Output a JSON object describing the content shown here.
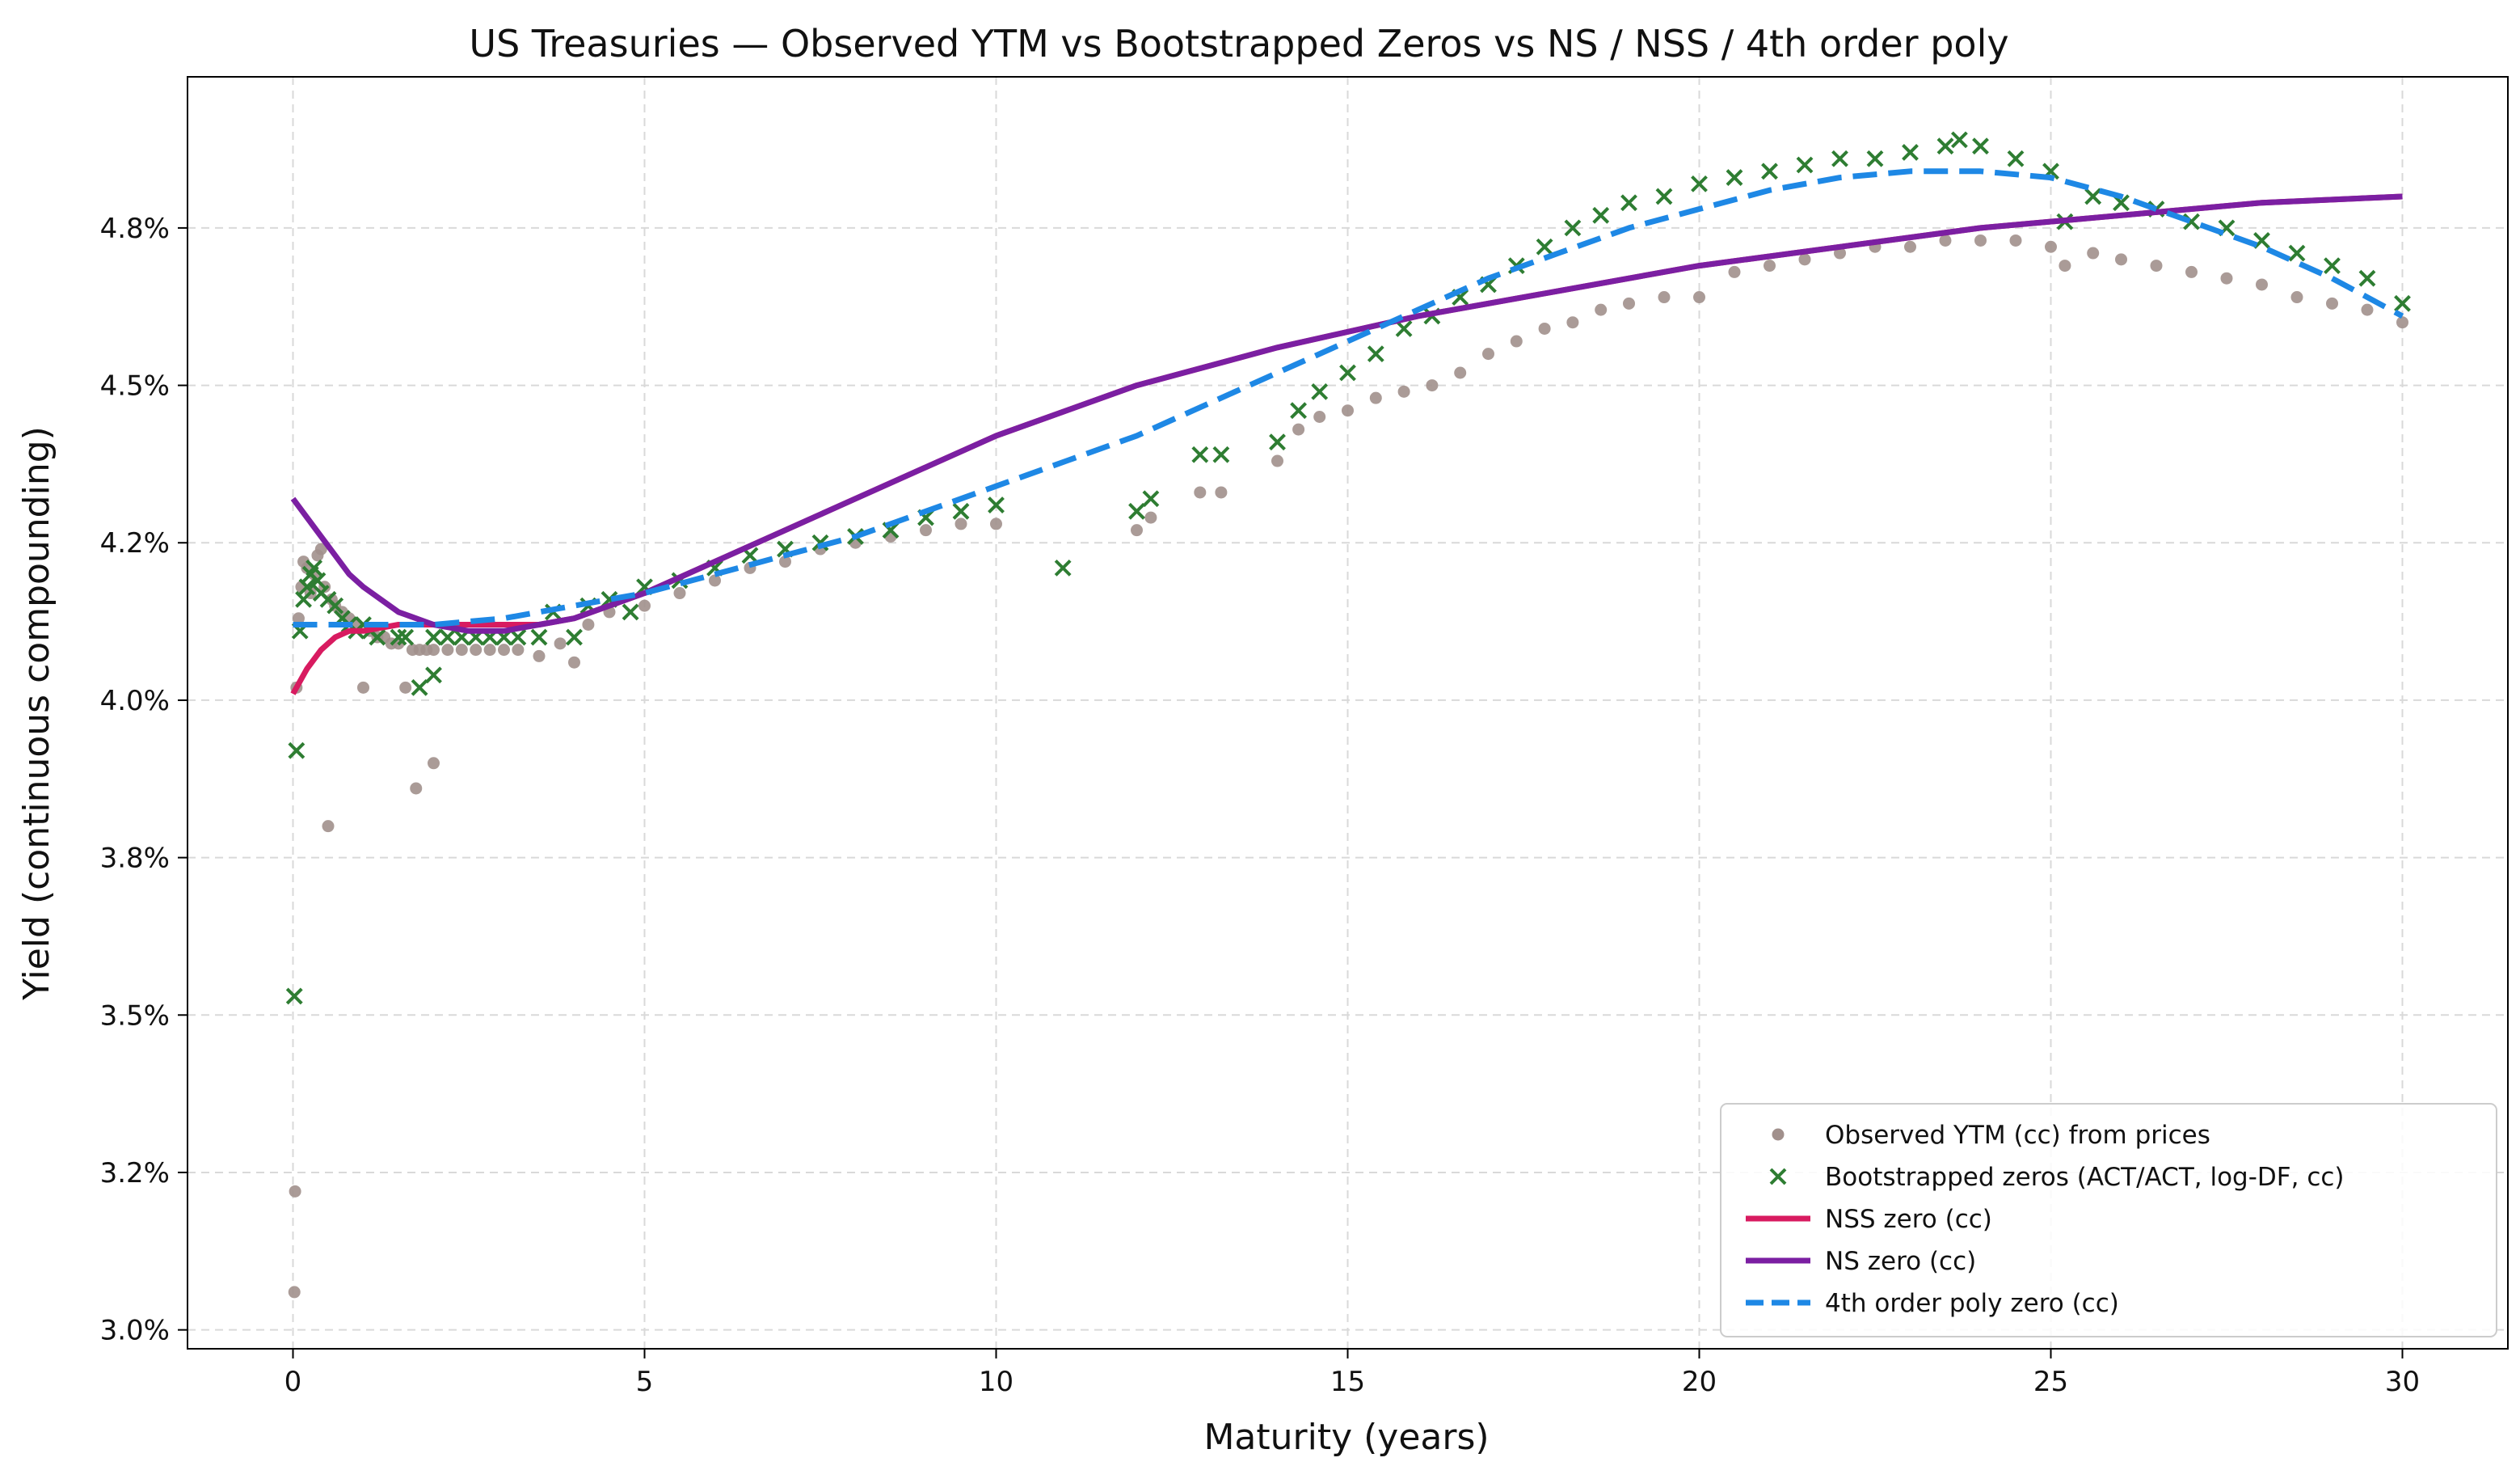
{
  "chart_data": {
    "type": "scatter",
    "title": "US Treasuries — Observed YTM vs Bootstrapped Zeros vs NS / NSS / 4th order poly",
    "xlabel": "Maturity (years)",
    "ylabel": "Yield (continuous compounding)",
    "xlim": [
      -1.5,
      31.5
    ],
    "ylim": [
      2.97,
      4.99
    ],
    "x_ticks": [
      0,
      5,
      10,
      15,
      20,
      25,
      30
    ],
    "x_tick_labels": [
      "0",
      "5",
      "10",
      "15",
      "20",
      "25",
      "30"
    ],
    "y_ticks": [
      3.0,
      3.25,
      3.5,
      3.75,
      4.0,
      4.25,
      4.5,
      4.75
    ],
    "y_tick_labels": [
      "3.0%",
      "3.2%",
      "3.5%",
      "3.8%",
      "4.0%",
      "4.2%",
      "4.5%",
      "4.8%"
    ],
    "grid": true,
    "legend_position": "lower-right",
    "series": [
      {
        "name": "Observed YTM (cc) from prices",
        "kind": "scatter-dot",
        "color": "#a1908c",
        "points": [
          [
            0.02,
            3.06
          ],
          [
            0.03,
            3.22
          ],
          [
            0.05,
            4.02
          ],
          [
            0.08,
            4.13
          ],
          [
            0.12,
            4.18
          ],
          [
            0.15,
            4.22
          ],
          [
            0.2,
            4.21
          ],
          [
            0.25,
            4.17
          ],
          [
            0.3,
            4.2
          ],
          [
            0.35,
            4.23
          ],
          [
            0.4,
            4.24
          ],
          [
            0.45,
            4.18
          ],
          [
            0.5,
            3.8
          ],
          [
            0.55,
            4.16
          ],
          [
            0.6,
            4.15
          ],
          [
            0.7,
            4.14
          ],
          [
            0.8,
            4.13
          ],
          [
            0.9,
            4.12
          ],
          [
            1.0,
            4.02
          ],
          [
            1.1,
            4.11
          ],
          [
            1.2,
            4.1
          ],
          [
            1.3,
            4.1
          ],
          [
            1.4,
            4.09
          ],
          [
            1.5,
            4.09
          ],
          [
            1.6,
            4.02
          ],
          [
            1.7,
            4.08
          ],
          [
            1.75,
            3.86
          ],
          [
            1.8,
            4.08
          ],
          [
            1.9,
            4.08
          ],
          [
            2.0,
            4.08
          ],
          [
            2.0,
            3.9
          ],
          [
            2.2,
            4.08
          ],
          [
            2.4,
            4.08
          ],
          [
            2.6,
            4.08
          ],
          [
            2.8,
            4.08
          ],
          [
            3.0,
            4.08
          ],
          [
            3.2,
            4.08
          ],
          [
            3.5,
            4.07
          ],
          [
            3.8,
            4.09
          ],
          [
            4.0,
            4.06
          ],
          [
            4.2,
            4.12
          ],
          [
            4.5,
            4.14
          ],
          [
            5.0,
            4.15
          ],
          [
            5.5,
            4.17
          ],
          [
            6.0,
            4.19
          ],
          [
            6.5,
            4.21
          ],
          [
            7.0,
            4.22
          ],
          [
            7.5,
            4.24
          ],
          [
            8.0,
            4.25
          ],
          [
            8.5,
            4.26
          ],
          [
            9.0,
            4.27
          ],
          [
            9.5,
            4.28
          ],
          [
            10.0,
            4.28
          ],
          [
            12.0,
            4.27
          ],
          [
            12.2,
            4.29
          ],
          [
            12.9,
            4.33
          ],
          [
            13.2,
            4.33
          ],
          [
            14.0,
            4.38
          ],
          [
            14.3,
            4.43
          ],
          [
            14.6,
            4.45
          ],
          [
            15.0,
            4.46
          ],
          [
            15.4,
            4.48
          ],
          [
            15.8,
            4.49
          ],
          [
            16.2,
            4.5
          ],
          [
            16.6,
            4.52
          ],
          [
            17.0,
            4.55
          ],
          [
            17.4,
            4.57
          ],
          [
            17.8,
            4.59
          ],
          [
            18.2,
            4.6
          ],
          [
            18.6,
            4.62
          ],
          [
            19.0,
            4.63
          ],
          [
            19.5,
            4.64
          ],
          [
            20.0,
            4.64
          ],
          [
            20.5,
            4.68
          ],
          [
            21.0,
            4.69
          ],
          [
            21.5,
            4.7
          ],
          [
            22.0,
            4.71
          ],
          [
            22.5,
            4.72
          ],
          [
            23.0,
            4.72
          ],
          [
            23.5,
            4.73
          ],
          [
            24.0,
            4.73
          ],
          [
            24.5,
            4.73
          ],
          [
            25.0,
            4.72
          ],
          [
            25.2,
            4.69
          ],
          [
            25.6,
            4.71
          ],
          [
            26.0,
            4.7
          ],
          [
            26.5,
            4.69
          ],
          [
            27.0,
            4.68
          ],
          [
            27.5,
            4.67
          ],
          [
            28.0,
            4.66
          ],
          [
            28.5,
            4.64
          ],
          [
            29.0,
            4.63
          ],
          [
            29.5,
            4.62
          ],
          [
            30.0,
            4.6
          ]
        ]
      },
      {
        "name": "Bootstrapped zeros (ACT/ACT, log-DF, cc)",
        "kind": "scatter-x",
        "color": "#2e7d32",
        "points": [
          [
            0.02,
            3.53
          ],
          [
            0.05,
            3.92
          ],
          [
            0.1,
            4.11
          ],
          [
            0.15,
            4.16
          ],
          [
            0.2,
            4.18
          ],
          [
            0.25,
            4.2
          ],
          [
            0.3,
            4.21
          ],
          [
            0.35,
            4.19
          ],
          [
            0.4,
            4.17
          ],
          [
            0.5,
            4.16
          ],
          [
            0.6,
            4.15
          ],
          [
            0.7,
            4.13
          ],
          [
            0.8,
            4.12
          ],
          [
            0.9,
            4.11
          ],
          [
            1.0,
            4.12
          ],
          [
            1.1,
            4.11
          ],
          [
            1.2,
            4.1
          ],
          [
            1.5,
            4.1
          ],
          [
            1.6,
            4.1
          ],
          [
            1.8,
            4.02
          ],
          [
            2.0,
            4.04
          ],
          [
            2.0,
            4.1
          ],
          [
            2.2,
            4.1
          ],
          [
            2.4,
            4.1
          ],
          [
            2.6,
            4.1
          ],
          [
            2.8,
            4.1
          ],
          [
            3.0,
            4.1
          ],
          [
            3.2,
            4.1
          ],
          [
            3.5,
            4.1
          ],
          [
            3.7,
            4.14
          ],
          [
            4.0,
            4.1
          ],
          [
            4.2,
            4.15
          ],
          [
            4.5,
            4.16
          ],
          [
            4.8,
            4.14
          ],
          [
            5.0,
            4.18
          ],
          [
            5.5,
            4.19
          ],
          [
            6.0,
            4.21
          ],
          [
            6.5,
            4.23
          ],
          [
            7.0,
            4.24
          ],
          [
            7.5,
            4.25
          ],
          [
            8.0,
            4.26
          ],
          [
            8.5,
            4.27
          ],
          [
            9.0,
            4.29
          ],
          [
            9.5,
            4.3
          ],
          [
            10.0,
            4.31
          ],
          [
            10.95,
            4.21
          ],
          [
            12.0,
            4.3
          ],
          [
            12.2,
            4.32
          ],
          [
            12.9,
            4.39
          ],
          [
            13.2,
            4.39
          ],
          [
            14.0,
            4.41
          ],
          [
            14.3,
            4.46
          ],
          [
            14.6,
            4.49
          ],
          [
            15.0,
            4.52
          ],
          [
            15.4,
            4.55
          ],
          [
            15.8,
            4.59
          ],
          [
            16.2,
            4.61
          ],
          [
            16.6,
            4.64
          ],
          [
            17.0,
            4.66
          ],
          [
            17.4,
            4.69
          ],
          [
            17.8,
            4.72
          ],
          [
            18.2,
            4.75
          ],
          [
            18.6,
            4.77
          ],
          [
            19.0,
            4.79
          ],
          [
            19.5,
            4.8
          ],
          [
            20.0,
            4.82
          ],
          [
            20.5,
            4.83
          ],
          [
            21.0,
            4.84
          ],
          [
            21.5,
            4.85
          ],
          [
            22.0,
            4.86
          ],
          [
            22.5,
            4.86
          ],
          [
            23.0,
            4.87
          ],
          [
            23.5,
            4.88
          ],
          [
            23.7,
            4.89
          ],
          [
            24.0,
            4.88
          ],
          [
            24.5,
            4.86
          ],
          [
            25.0,
            4.84
          ],
          [
            25.2,
            4.76
          ],
          [
            25.6,
            4.8
          ],
          [
            26.0,
            4.79
          ],
          [
            26.5,
            4.78
          ],
          [
            27.0,
            4.76
          ],
          [
            27.5,
            4.75
          ],
          [
            28.0,
            4.73
          ],
          [
            28.5,
            4.71
          ],
          [
            29.0,
            4.69
          ],
          [
            29.5,
            4.67
          ],
          [
            30.0,
            4.63
          ]
        ]
      },
      {
        "name": "NSS zero (cc)",
        "kind": "line",
        "color": "#d81b60",
        "points": [
          [
            0.0,
            4.01
          ],
          [
            0.2,
            4.05
          ],
          [
            0.4,
            4.08
          ],
          [
            0.6,
            4.1
          ],
          [
            0.8,
            4.11
          ],
          [
            1.0,
            4.11
          ],
          [
            1.5,
            4.12
          ],
          [
            2.0,
            4.12
          ],
          [
            2.5,
            4.12
          ],
          [
            3.0,
            4.12
          ],
          [
            3.5,
            4.12
          ],
          [
            4.0,
            4.13
          ],
          [
            4.5,
            4.15
          ],
          [
            5.0,
            4.17
          ],
          [
            6.0,
            4.22
          ],
          [
            7.0,
            4.27
          ],
          [
            8.0,
            4.32
          ],
          [
            9.0,
            4.37
          ],
          [
            10.0,
            4.42
          ],
          [
            12.0,
            4.5
          ],
          [
            14.0,
            4.56
          ],
          [
            16.0,
            4.61
          ],
          [
            18.0,
            4.65
          ],
          [
            20.0,
            4.69
          ],
          [
            22.0,
            4.72
          ],
          [
            24.0,
            4.75
          ],
          [
            26.0,
            4.77
          ],
          [
            28.0,
            4.79
          ],
          [
            30.0,
            4.8
          ]
        ]
      },
      {
        "name": "NS zero (cc)",
        "kind": "line",
        "color": "#7b1fa2",
        "points": [
          [
            0.0,
            4.32
          ],
          [
            0.2,
            4.29
          ],
          [
            0.4,
            4.26
          ],
          [
            0.6,
            4.23
          ],
          [
            0.8,
            4.2
          ],
          [
            1.0,
            4.18
          ],
          [
            1.5,
            4.14
          ],
          [
            2.0,
            4.12
          ],
          [
            2.5,
            4.11
          ],
          [
            3.0,
            4.11
          ],
          [
            3.5,
            4.12
          ],
          [
            4.0,
            4.13
          ],
          [
            4.5,
            4.15
          ],
          [
            5.0,
            4.17
          ],
          [
            6.0,
            4.22
          ],
          [
            7.0,
            4.27
          ],
          [
            8.0,
            4.32
          ],
          [
            9.0,
            4.37
          ],
          [
            10.0,
            4.42
          ],
          [
            12.0,
            4.5
          ],
          [
            14.0,
            4.56
          ],
          [
            16.0,
            4.61
          ],
          [
            18.0,
            4.65
          ],
          [
            20.0,
            4.69
          ],
          [
            22.0,
            4.72
          ],
          [
            24.0,
            4.75
          ],
          [
            26.0,
            4.77
          ],
          [
            28.0,
            4.79
          ],
          [
            30.0,
            4.8
          ]
        ]
      },
      {
        "name": "4th order poly zero (cc)",
        "kind": "dashed-line",
        "color": "#1e88e5",
        "points": [
          [
            0.0,
            4.12
          ],
          [
            1.0,
            4.12
          ],
          [
            2.0,
            4.12
          ],
          [
            3.0,
            4.13
          ],
          [
            4.0,
            4.15
          ],
          [
            5.0,
            4.17
          ],
          [
            6.0,
            4.2
          ],
          [
            7.0,
            4.23
          ],
          [
            8.0,
            4.26
          ],
          [
            9.0,
            4.3
          ],
          [
            10.0,
            4.34
          ],
          [
            11.0,
            4.38
          ],
          [
            12.0,
            4.42
          ],
          [
            13.0,
            4.47
          ],
          [
            14.0,
            4.52
          ],
          [
            15.0,
            4.57
          ],
          [
            16.0,
            4.62
          ],
          [
            17.0,
            4.67
          ],
          [
            18.0,
            4.71
          ],
          [
            19.0,
            4.75
          ],
          [
            20.0,
            4.78
          ],
          [
            21.0,
            4.81
          ],
          [
            22.0,
            4.83
          ],
          [
            23.0,
            4.84
          ],
          [
            24.0,
            4.84
          ],
          [
            25.0,
            4.83
          ],
          [
            26.0,
            4.8
          ],
          [
            27.0,
            4.76
          ],
          [
            28.0,
            4.72
          ],
          [
            29.0,
            4.67
          ],
          [
            30.0,
            4.61
          ]
        ]
      }
    ]
  }
}
